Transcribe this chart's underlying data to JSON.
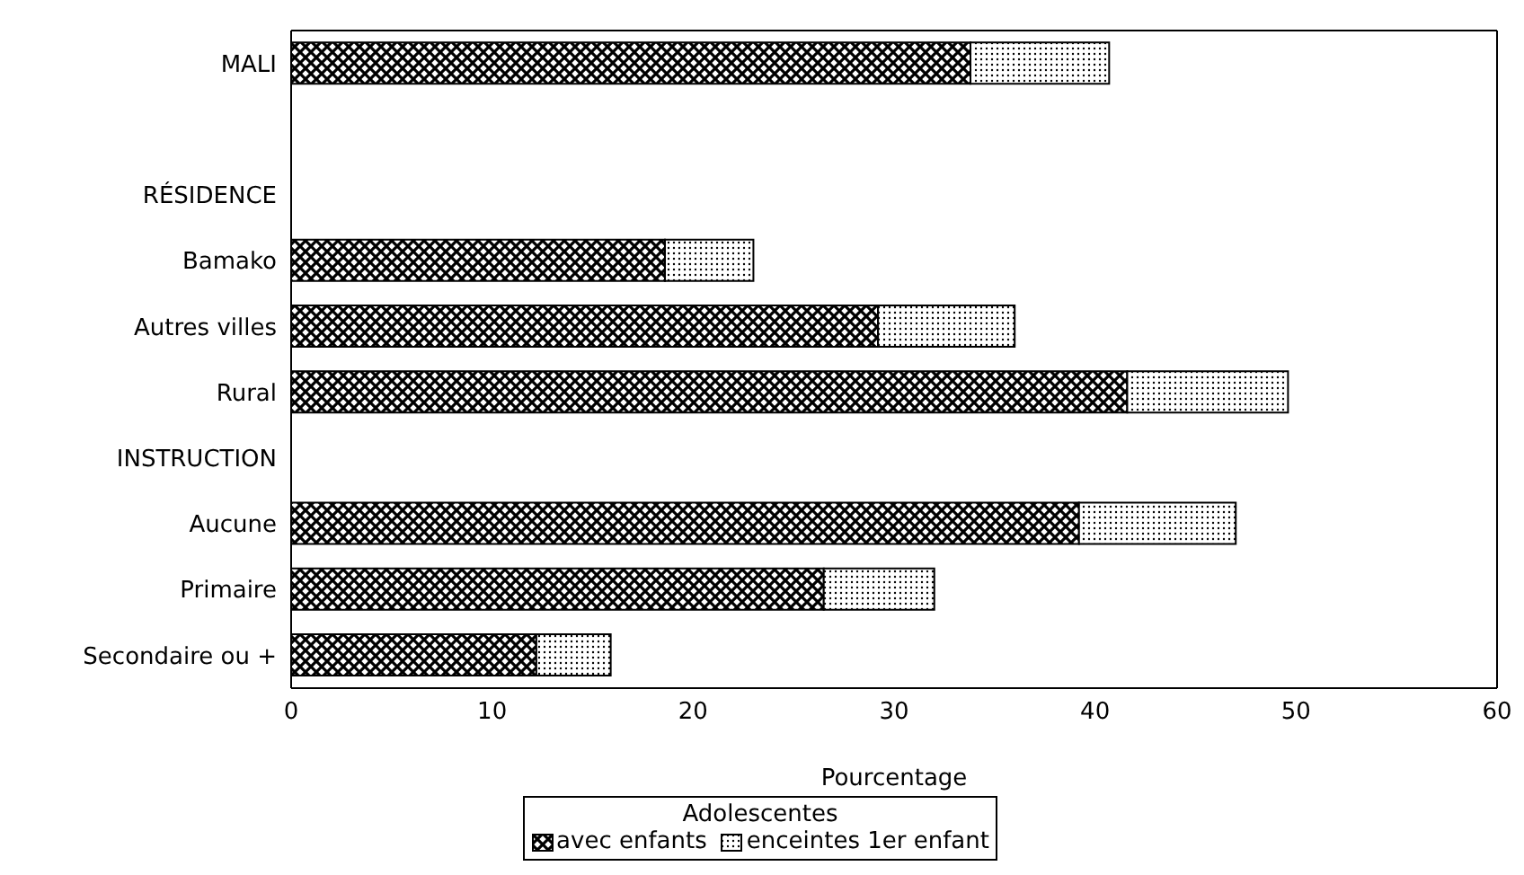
{
  "chart_data": {
    "type": "bar",
    "orientation": "horizontal",
    "stacked": true,
    "categories": [
      "MALI",
      null,
      "RÉSIDENCE",
      "Bamako",
      "Autres villes",
      "Rural",
      "INSTRUCTION",
      "Aucune",
      "Primaire",
      "Secondaire ou +"
    ],
    "series": [
      {
        "name": "avec enfants",
        "color": "#000000",
        "values": [
          33.8,
          null,
          null,
          18.6,
          29.2,
          41.6,
          null,
          39.2,
          26.5,
          12.2
        ]
      },
      {
        "name": "enceintes 1er enfant",
        "color": "#000000",
        "values": [
          6.9,
          null,
          null,
          4.4,
          6.8,
          8.0,
          null,
          7.8,
          5.5,
          3.7
        ]
      }
    ],
    "xlim": [
      0,
      60
    ],
    "xticks": [
      0,
      10,
      20,
      30,
      40,
      50,
      60
    ],
    "xlabel": "Pourcentage",
    "legend_title": "Adolescentes",
    "legend": "bottom",
    "grid": false
  }
}
